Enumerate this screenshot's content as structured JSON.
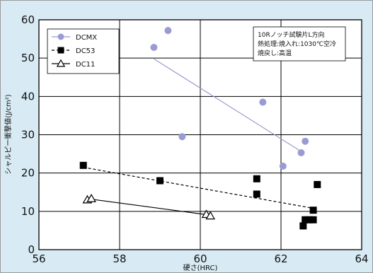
{
  "chart_data": {
    "type": "scatter",
    "xlabel": "硬さ(HRC)",
    "ylabel": "シャルピー衝撃値(J/cm²)",
    "xlim": [
      56,
      64
    ],
    "ylim": [
      0,
      60
    ],
    "x_ticks": [
      "56",
      "58",
      "60",
      "62",
      "64"
    ],
    "y_ticks": [
      "0",
      "10",
      "20",
      "30",
      "40",
      "50",
      "60"
    ],
    "grid": true,
    "legend_position": "top-left",
    "annotation": [
      "10Rノッチ試験片L方向",
      "熱処理:焼入れ:1030℃空冷",
      "焼戻し:高温"
    ],
    "series": [
      {
        "name": "DCMX",
        "marker": "circle",
        "color": "#9b9bd3",
        "points": [
          [
            58.85,
            52.8
          ],
          [
            59.2,
            57.2
          ],
          [
            59.55,
            29.5
          ],
          [
            61.55,
            38.5
          ],
          [
            62.05,
            21.8
          ],
          [
            62.5,
            25.3
          ],
          [
            62.6,
            28.3
          ]
        ],
        "trend": [
          [
            58.85,
            49.8
          ],
          [
            62.55,
            25.3
          ]
        ],
        "trend_style": "solid"
      },
      {
        "name": "DC53",
        "marker": "square",
        "color": "#000000",
        "points": [
          [
            57.1,
            22.0
          ],
          [
            59.0,
            18.0
          ],
          [
            61.4,
            18.5
          ],
          [
            61.4,
            14.5
          ],
          [
            62.55,
            6.2
          ],
          [
            62.6,
            7.8
          ],
          [
            62.7,
            7.8
          ],
          [
            62.8,
            7.8
          ],
          [
            62.8,
            10.3
          ],
          [
            62.9,
            17.0
          ]
        ],
        "trend": [
          [
            57.1,
            21.5
          ],
          [
            62.8,
            10.8
          ]
        ],
        "trend_style": "dashed"
      },
      {
        "name": "DC11",
        "marker": "triangle",
        "color": "#000000",
        "points": [
          [
            57.2,
            13.0
          ],
          [
            57.3,
            13.3
          ],
          [
            60.15,
            9.2
          ],
          [
            60.25,
            8.8
          ]
        ],
        "trend": [
          [
            57.35,
            13.1
          ],
          [
            60.25,
            9.0
          ]
        ],
        "trend_style": "solid"
      }
    ]
  }
}
